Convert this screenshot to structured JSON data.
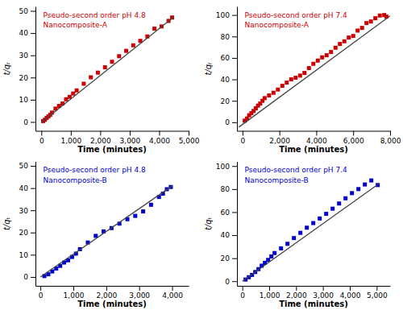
{
  "chart_data": [
    {
      "type": "scatter",
      "title": "Pseudo-second order pH 4.8",
      "subtitle": "Nanocomposite-A",
      "color": "#CC0000",
      "xlabel": "Time (minutes)",
      "ylabel": "t/qₜ",
      "xlim": [
        -200,
        5000
      ],
      "ylim": [
        -4,
        52
      ],
      "xticks": [
        0,
        {
          "value": 1000,
          "label": "1,000"
        },
        {
          "value": 2000,
          "label": "2,000"
        },
        {
          "value": 3000,
          "label": "3,000"
        },
        {
          "value": 4000,
          "label": "4,000"
        },
        {
          "value": 5000,
          "label": "5,000"
        }
      ],
      "yticks": [
        0,
        10,
        20,
        30,
        40,
        50
      ],
      "series": [
        {
          "type": "scatter",
          "marker": "square",
          "x": [
            60,
            120,
            180,
            240,
            300,
            360,
            480,
            600,
            720,
            840,
            960,
            1080,
            1200,
            1440,
            1680,
            1920,
            2160,
            2400,
            2640,
            2880,
            3120,
            3360,
            3600,
            3840,
            4080,
            4320,
            4440
          ],
          "values": [
            0.4,
            1.0,
            1.8,
            2.5,
            3.2,
            4.2,
            6.0,
            7.2,
            8.3,
            10.2,
            11.3,
            12.8,
            14.2,
            17.2,
            20.1,
            22.2,
            24.6,
            27.1,
            29.6,
            32.0,
            34.5,
            36.5,
            38.5,
            42.0,
            43.0,
            45.5,
            47.0
          ]
        },
        {
          "type": "line",
          "color": "#444444",
          "x": [
            0,
            4500
          ],
          "values": [
            -0.2,
            47.275
          ]
        }
      ]
    },
    {
      "type": "scatter",
      "title": "Pseudo-second order pH 7.4",
      "subtitle": "Nanocomposite-A",
      "color": "#CC0000",
      "xlabel": "Time (minutes)",
      "ylabel": "t/qₜ",
      "xlim": [
        -300,
        8000
      ],
      "ylim": [
        -8,
        108
      ],
      "xticks": [
        0,
        {
          "value": 2000,
          "label": "2,000"
        },
        {
          "value": 4000,
          "label": "4,000"
        },
        {
          "value": 6000,
          "label": "6,000"
        },
        {
          "value": 8000,
          "label": "8,000"
        }
      ],
      "yticks": [
        0,
        20,
        40,
        60,
        80,
        100
      ],
      "series": [
        {
          "type": "scatter",
          "marker": "square",
          "x": [
            120,
            240,
            360,
            480,
            600,
            720,
            840,
            960,
            1080,
            1200,
            1440,
            1680,
            1920,
            2160,
            2400,
            2640,
            2880,
            3120,
            3360,
            3600,
            3840,
            4080,
            4320,
            4560,
            4800,
            5040,
            5280,
            5520,
            5760,
            6000,
            6240,
            6480,
            6720,
            6960,
            7200,
            7440,
            7680,
            7800
          ],
          "values": [
            1.5,
            3.5,
            6.5,
            8.5,
            10.5,
            13.0,
            15.5,
            17.5,
            20.0,
            22.5,
            25.0,
            27.5,
            30.5,
            34.0,
            37.0,
            40.0,
            41.5,
            43.5,
            46.0,
            50.5,
            54.5,
            57.5,
            60.5,
            62.5,
            65.5,
            69.5,
            73.0,
            75.5,
            79.0,
            80.5,
            85.5,
            88.0,
            92.5,
            94.0,
            97.0,
            99.5,
            100.0,
            98.5
          ]
        },
        {
          "type": "line",
          "color": "#444444",
          "x": [
            -200,
            8000
          ],
          "values": [
            -4.53,
            99.2
          ]
        }
      ]
    },
    {
      "type": "scatter",
      "title": "Pseudo-second order pH 4.8",
      "subtitle": "Nanocomposite-B",
      "color": "#0000CC",
      "xlabel": "Time (minutes)",
      "ylabel": "t/qₜ",
      "xlim": [
        -150,
        4500
      ],
      "ylim": [
        -4,
        52
      ],
      "xticks": [
        0,
        {
          "value": 1000,
          "label": "1,000"
        },
        {
          "value": 2000,
          "label": "2,000"
        },
        {
          "value": 3000,
          "label": "3,000"
        },
        {
          "value": 4000,
          "label": "4,000"
        }
      ],
      "yticks": [
        0,
        10,
        20,
        30,
        40,
        50
      ],
      "series": [
        {
          "type": "scatter",
          "marker": "square",
          "x": [
            120,
            240,
            360,
            480,
            600,
            720,
            840,
            960,
            1080,
            1200,
            1440,
            1680,
            1920,
            2160,
            2400,
            2640,
            2880,
            3120,
            3360,
            3600,
            3720,
            3840,
            3960
          ],
          "values": [
            0.4,
            1.2,
            2.5,
            3.8,
            5.0,
            6.5,
            7.5,
            9.0,
            10.5,
            12.5,
            15.5,
            18.5,
            20.5,
            22.0,
            24.0,
            26.0,
            27.5,
            29.5,
            32.5,
            36.0,
            37.5,
            39.5,
            40.5
          ]
        },
        {
          "type": "line",
          "color": "#444444",
          "x": [
            0,
            4000
          ],
          "values": [
            0.0,
            41
          ]
        }
      ]
    },
    {
      "type": "scatter",
      "title": "Pseudo-second order pH 7.4",
      "subtitle": "Nanocomposite-B",
      "color": "#0000CC",
      "xlabel": "Time (minutes)",
      "ylabel": "t/qₜ",
      "xlim": [
        -200,
        5500
      ],
      "ylim": [
        -4,
        104
      ],
      "xticks": [
        0,
        {
          "value": 1000,
          "label": "1,000"
        },
        {
          "value": 2000,
          "label": "2,000"
        },
        {
          "value": 3000,
          "label": "3,000"
        },
        {
          "value": 4000,
          "label": "4,000"
        },
        {
          "value": 5000,
          "label": "5,000"
        }
      ],
      "yticks": [
        0,
        20,
        40,
        60,
        80,
        100
      ],
      "series": [
        {
          "type": "scatter",
          "marker": "square",
          "x": [
            120,
            240,
            360,
            480,
            600,
            720,
            840,
            960,
            1080,
            1200,
            1440,
            1680,
            1920,
            2160,
            2400,
            2640,
            2880,
            3120,
            3360,
            3600,
            3840,
            4080,
            4320,
            4560,
            4800,
            5040
          ],
          "values": [
            1.5,
            3.5,
            5.5,
            8.0,
            10.5,
            13.5,
            16.0,
            18.5,
            21.5,
            24.5,
            28.5,
            32.5,
            37.5,
            42.0,
            46.5,
            50.5,
            54.5,
            58.5,
            63.0,
            67.5,
            72.0,
            76.5,
            80.0,
            84.0,
            87.5,
            83.5
          ]
        },
        {
          "type": "line",
          "color": "#444444",
          "x": [
            0,
            5100
          ],
          "values": [
            0.0,
            84.915
          ]
        }
      ]
    }
  ]
}
